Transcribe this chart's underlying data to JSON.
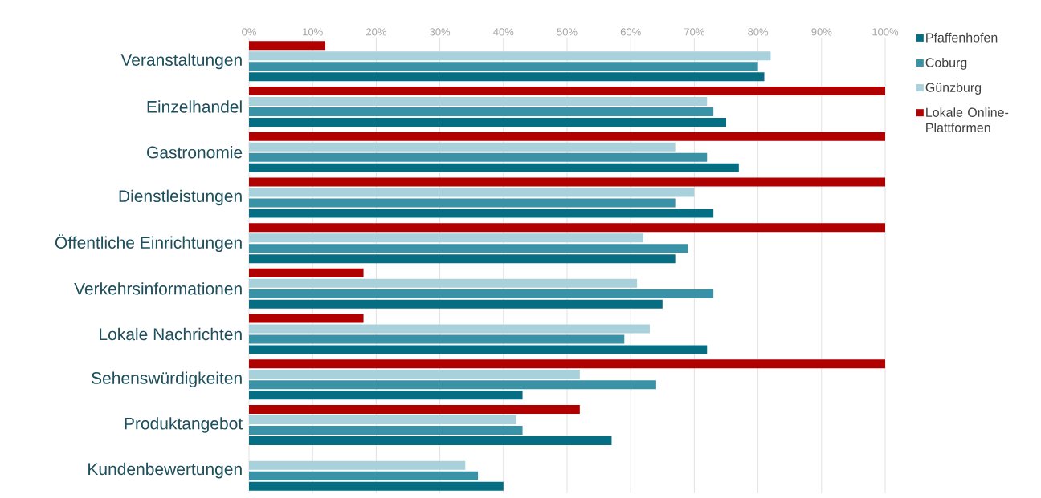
{
  "chart_data": {
    "type": "bar",
    "orientation": "horizontal",
    "categories": [
      "Veranstaltungen",
      "Einzelhandel",
      "Gastronomie",
      "Dienstleistungen",
      "Öffentliche Einrichtungen",
      "Verkehrsinformationen",
      "Lokale Nachrichten",
      "Sehenswürdigkeiten",
      "Produktangebot",
      "Kundenbewertungen"
    ],
    "series": [
      {
        "name": "Pfaffenhofen",
        "color": "#066e83",
        "values": [
          81,
          75,
          77,
          73,
          67,
          65,
          72,
          43,
          57,
          40
        ]
      },
      {
        "name": "Coburg",
        "color": "#3a92a6",
        "values": [
          80,
          73,
          72,
          67,
          69,
          73,
          59,
          64,
          43,
          36
        ]
      },
      {
        "name": "Günzburg",
        "color": "#a9d1dc",
        "values": [
          82,
          72,
          67,
          70,
          62,
          61,
          63,
          52,
          42,
          34
        ]
      },
      {
        "name": "Lokale Online-Plattformen",
        "color": "#b00000",
        "values": [
          12,
          100,
          100,
          100,
          100,
          18,
          18,
          100,
          52,
          null
        ]
      }
    ],
    "xlim": [
      0,
      100
    ],
    "xticks": [
      {
        "value": 0,
        "label": "0%"
      },
      {
        "value": 10,
        "label": "10%"
      },
      {
        "value": 20,
        "label": "20%"
      },
      {
        "value": 30,
        "label": "30%"
      },
      {
        "value": 40,
        "label": "40%"
      },
      {
        "value": 50,
        "label": "50%"
      },
      {
        "value": 60,
        "label": "60%"
      },
      {
        "value": 70,
        "label": "70%"
      },
      {
        "value": 80,
        "label": "80%"
      },
      {
        "value": 90,
        "label": "90%"
      },
      {
        "value": 100,
        "label": "100%"
      }
    ],
    "grid": "x",
    "legend": "top right"
  }
}
